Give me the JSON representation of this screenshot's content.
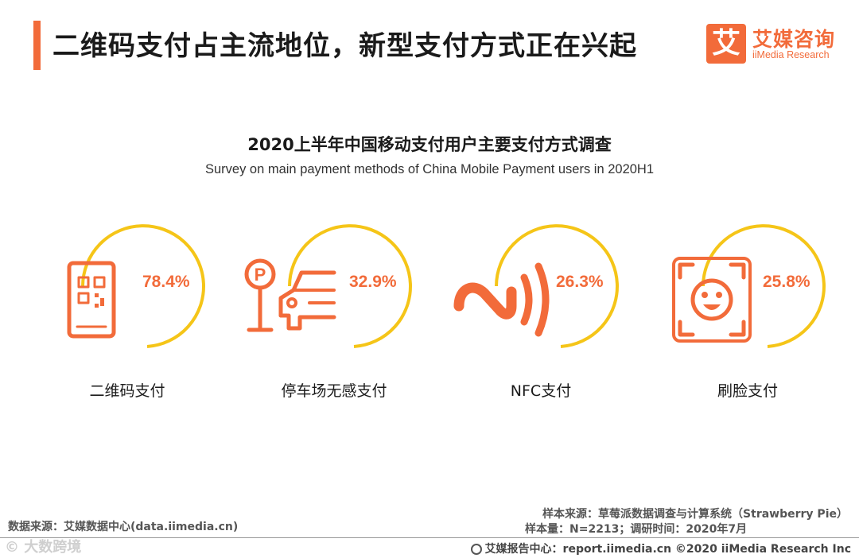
{
  "header": {
    "title": "二维码支付占主流地位，新型支付方式正在兴起",
    "logo_mark": "艾",
    "logo_cn": "艾媒咨询",
    "logo_en": "iiMedia Research"
  },
  "colors": {
    "accent": "#f26b3a",
    "arc": "#f5c518"
  },
  "chart_data": {
    "type": "donut-arc",
    "title": "2020上半年中国移动支付用户主要支付方式调查",
    "subtitle": "Survey on main payment methods of China Mobile Payment users in 2020H1",
    "unit": "%",
    "categories": [
      "二维码支付",
      "停车场无感支付",
      "NFC支付",
      "刷脸支付"
    ],
    "values": [
      78.4,
      32.9,
      26.3,
      25.8
    ],
    "value_labels": [
      "78.4%",
      "32.9%",
      "26.3%",
      "25.8%"
    ],
    "icons": [
      "qr-phone-icon",
      "parking-car-icon",
      "nfc-icon",
      "face-scan-icon"
    ]
  },
  "footer": {
    "source_left": "数据来源：艾媒数据中心(data.iimedia.cn)",
    "sample_source": "样本来源：草莓派数据调查与计算系统（Strawberry Pie）",
    "sample_size": "样本量：N=2213；调研时间：2020年7月",
    "report_center": "艾媒报告中心：report.iimedia.cn  ©2020  iiMedia Research  Inc",
    "watermark": "© 大数跨境"
  }
}
